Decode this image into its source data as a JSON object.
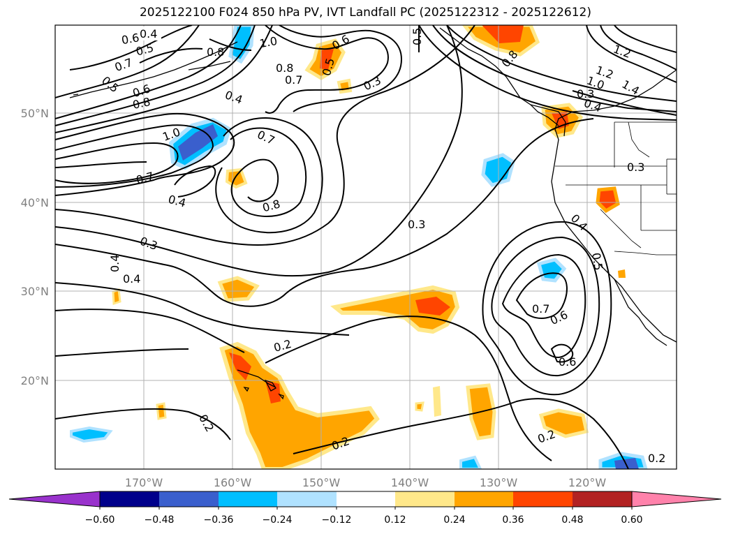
{
  "title": "2025122100 F024 850 hPa PV, IVT Landfall PC (2025122312 - 2025122612)",
  "map": {
    "lon_labels": [
      "170°W",
      "160°W",
      "150°W",
      "140°W",
      "130°W",
      "120°W"
    ],
    "lat_labels": [
      "50°N",
      "40°N",
      "30°N",
      "20°N"
    ],
    "contour_labels": [
      "0.4",
      "0.6",
      "0.7",
      "0.5",
      "0.5",
      "0.6",
      "0.8",
      "1.0",
      "0.4",
      "1.0",
      "0.8",
      "0.7",
      "0.6",
      "0.5",
      "0.3",
      "0.7",
      "0.8",
      "0.4",
      "0.7",
      "0.8",
      "0.3",
      "0.3",
      "0.4",
      "0.4",
      "0.3",
      "0.2",
      "0.2",
      "0.2",
      "0.7",
      "0.6",
      "0.6",
      "0.2",
      "0.2",
      "1.2",
      "1.2",
      "1.4",
      "1.0",
      "0.4",
      "0.5",
      "0.8",
      "0.4",
      "0.3",
      "0.5"
    ]
  },
  "colorbar": {
    "ticks": [
      "−0.60",
      "−0.48",
      "−0.36",
      "−0.24",
      "−0.12",
      "0.12",
      "0.24",
      "0.36",
      "0.48",
      "0.60"
    ],
    "colors": [
      "#9932cc",
      "#00008b",
      "#3a5fcd",
      "#00bfff",
      "#b0e2ff",
      "#ffffff",
      "#ffe88a",
      "#ffa500",
      "#ff4500",
      "#b22222",
      "#ff82ab"
    ]
  }
}
